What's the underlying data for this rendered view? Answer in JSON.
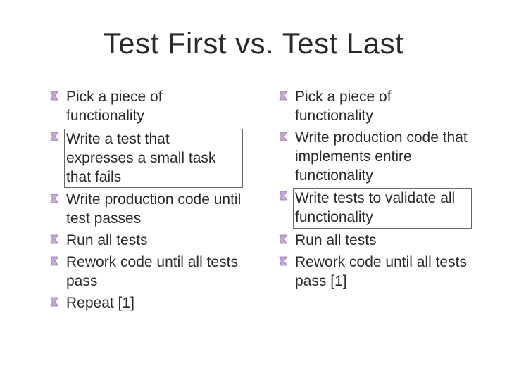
{
  "title": "Test First vs. Test Last",
  "colors": {
    "bullet_fill": "#c8a8d8",
    "bullet_stroke": "#947aa6",
    "box_border": "#6a6a6a",
    "text": "#2a2a2a",
    "background": "#ffffff"
  },
  "typography": {
    "title_fontsize": 42,
    "body_fontsize": 21,
    "font_family": "Trebuchet MS"
  },
  "left": {
    "items": [
      {
        "text": "Pick a piece of functionality",
        "boxed": false
      },
      {
        "text": "Write a test that expresses a small task that fails",
        "boxed": true
      },
      {
        "text": "Write production code until test passes",
        "boxed": false
      },
      {
        "text": "Run all tests",
        "boxed": false
      },
      {
        "text": "Rework code until all tests pass",
        "boxed": false
      },
      {
        "text": "Repeat   [1]",
        "boxed": false
      }
    ]
  },
  "right": {
    "items": [
      {
        "text": "Pick a piece of functionality",
        "boxed": false
      },
      {
        "text": "Write production code that implements entire functionality",
        "boxed": false
      },
      {
        "text": "Write tests to validate all functionality",
        "boxed": true
      },
      {
        "text": "Run all tests",
        "boxed": false
      },
      {
        "text": "Rework code until all tests pass   [1]",
        "boxed": false
      }
    ]
  }
}
